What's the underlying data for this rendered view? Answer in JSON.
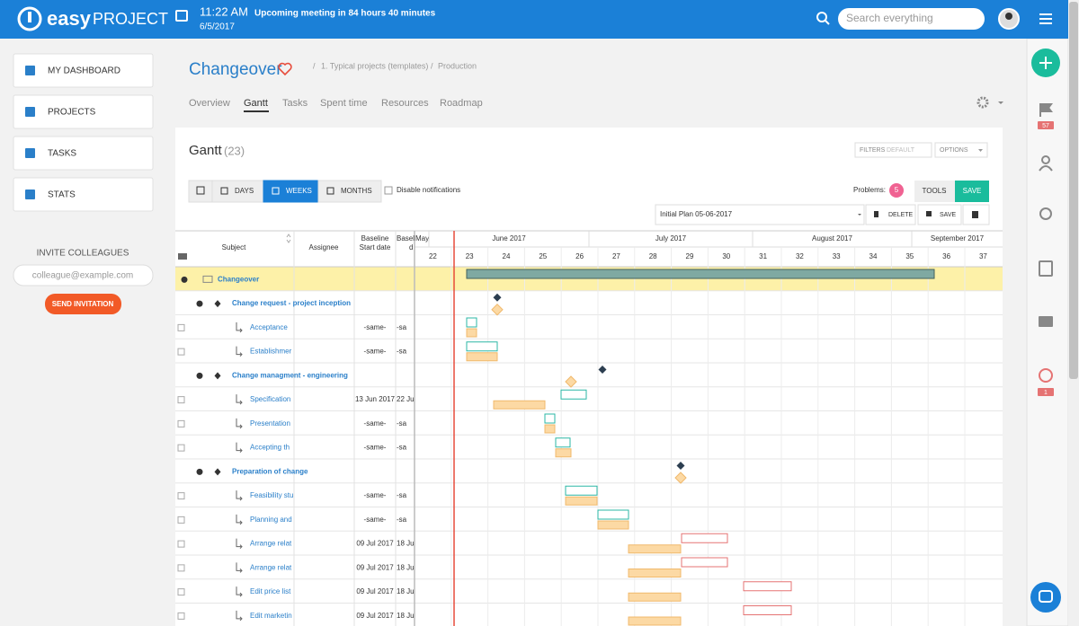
{
  "header": {
    "logo_easy": "easy",
    "logo_project": "PROJECT",
    "time": "11:22 AM",
    "date": "6/5/2017",
    "meeting": "Upcoming meeting in 84 hours 40 minutes",
    "search_placeholder": "Search everything"
  },
  "sidebar": {
    "menu": [
      "MY DASHBOARD",
      "PROJECTS",
      "TASKS",
      "STATS"
    ],
    "invite_title": "INVITE COLLEAGUES",
    "invite_placeholder": "colleague@example.com",
    "invite_button": "SEND INVITATION"
  },
  "right_rail": {
    "flag_badge": 57,
    "alarm_badge": 1
  },
  "project": {
    "title": "Changeover",
    "separator": "/",
    "breadcrumb": [
      "1. Typical projects (templates)",
      "Production"
    ],
    "tabs": [
      "Overview",
      "Gantt",
      "Tasks",
      "Spent time",
      "Resources",
      "Roadmap"
    ]
  },
  "gantt": {
    "title": "Gantt",
    "count": "(23)",
    "filters": "FILTERS",
    "filters_value": "DEFAULT",
    "options": "OPTIONS",
    "views": [
      "DAYS",
      "WEEKS",
      "MONTHS"
    ],
    "disable_notifications": "Disable notifications",
    "problems_label": "Problems:",
    "problems": 5,
    "tools": "TOOLS",
    "save": "SAVE",
    "baseline": "Initial Plan 05-06-2017",
    "delete": "DELETE",
    "baseline_save": "SAVE",
    "columns": {
      "subject": "Subject",
      "assignee": "Assignee",
      "baseline_start": [
        "Baseline",
        "Start date"
      ],
      "baseline_end": [
        "Basel",
        "d"
      ]
    },
    "months": [
      "May",
      "June 2017",
      "July 2017",
      "August 2017",
      "September 2017"
    ],
    "weeks": [
      22,
      23,
      24,
      25,
      26,
      27,
      28,
      29,
      30,
      31,
      32,
      33,
      34,
      35,
      36,
      37
    ],
    "rows": [
      {
        "subject": "Changeover"
      },
      {
        "subject": "Change request - project inception"
      },
      {
        "subject": "Acceptance",
        "baseline_start": "-same-",
        "baseline_end": "-sa"
      },
      {
        "subject": "Establishmer",
        "baseline_start": "-same-",
        "baseline_end": "-sa"
      },
      {
        "subject": "Change managment - engineering"
      },
      {
        "subject": "Specification",
        "baseline_start": "13 Jun 2017",
        "baseline_end": "22 Ju"
      },
      {
        "subject": "Presentation",
        "baseline_start": "-same-",
        "baseline_end": "-sa"
      },
      {
        "subject": "Accepting th",
        "baseline_start": "-same-",
        "baseline_end": "-sa"
      },
      {
        "subject": "Preparation of change"
      },
      {
        "subject": "Feasibility stu",
        "baseline_start": "-same-",
        "baseline_end": "-sa"
      },
      {
        "subject": "Planning and",
        "baseline_start": "-same-",
        "baseline_end": "-sa"
      },
      {
        "subject": "Arrange relat",
        "baseline_start": "09 Jul 2017",
        "baseline_end": "18 Ju"
      },
      {
        "subject": "Arrange relat",
        "baseline_start": "09 Jul 2017",
        "baseline_end": "18 Ju"
      },
      {
        "subject": "Edit price list",
        "baseline_start": "09 Jul 2017",
        "baseline_end": "18 Ju"
      },
      {
        "subject": "Edit marketin",
        "baseline_start": "09 Jul 2017",
        "baseline_end": "18 Ju"
      }
    ]
  }
}
